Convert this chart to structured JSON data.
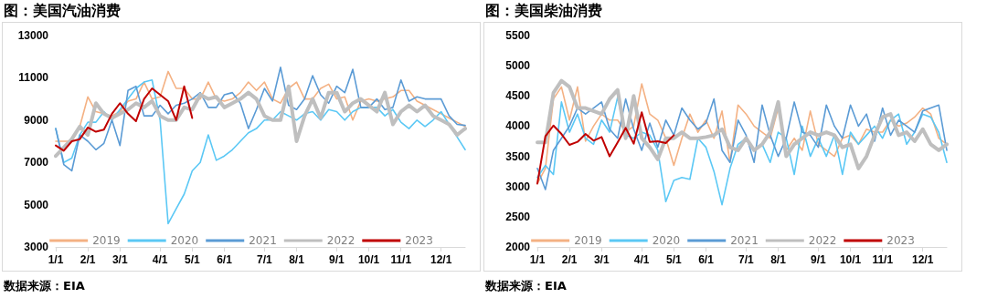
{
  "chart_data": [
    {
      "type": "line",
      "title": "图：美国汽油消费",
      "annotations": [
        "数据来源：EIA"
      ],
      "categories": [
        "1/1",
        null,
        null,
        null,
        "2/1",
        null,
        null,
        null,
        "3/1",
        null,
        null,
        null,
        null,
        "4/1",
        null,
        null,
        null,
        "5/1",
        null,
        null,
        null,
        "6/1",
        null,
        null,
        null,
        null,
        "7/1",
        null,
        null,
        null,
        "8/1",
        null,
        null,
        null,
        null,
        "9/1",
        null,
        null,
        null,
        "10/1",
        null,
        null,
        null,
        "11/1",
        null,
        null,
        null,
        null,
        "12/1",
        null,
        null,
        null
      ],
      "series": [
        {
          "name": "2019",
          "color": "#f4b183",
          "values": [
            8000,
            8000,
            8000,
            8700,
            10100,
            9400,
            9300,
            9200,
            9400,
            9900,
            10000,
            10800,
            10000,
            10100,
            11300,
            10500,
            10500,
            10000,
            10000,
            10800,
            10000,
            9900,
            10000,
            10300,
            10800,
            10400,
            10800,
            10000,
            9800,
            10500,
            10800,
            10000,
            10000,
            10500,
            10700,
            10000,
            10100,
            9000,
            9900,
            10000,
            9900,
            10000,
            10100,
            10400,
            10400,
            9900,
            9700,
            9500,
            9300,
            9100,
            8900,
            8700
          ]
        },
        {
          "name": "2020",
          "color": "#5bc8f5",
          "values": [
            8600,
            7000,
            7200,
            8300,
            8900,
            8900,
            9400,
            9000,
            9500,
            10000,
            10500,
            10800,
            10900,
            9000,
            4100,
            4800,
            5500,
            6600,
            7000,
            8300,
            7100,
            7300,
            7600,
            8000,
            8400,
            8600,
            9000,
            9000,
            9400,
            9200,
            9000,
            9300,
            9400,
            9000,
            9500,
            9400,
            9000,
            9400,
            9600,
            9600,
            9600,
            9200,
            9500,
            8900,
            8600,
            9000,
            8700,
            9000,
            9400,
            8800,
            8200,
            7600
          ]
        },
        {
          "name": "2021",
          "color": "#5b9bd5",
          "values": [
            8600,
            6900,
            6600,
            8300,
            8000,
            7600,
            7900,
            9000,
            7800,
            10400,
            10600,
            9200,
            9200,
            9700,
            9300,
            9700,
            9800,
            10000,
            10300,
            9600,
            9600,
            10200,
            10300,
            9800,
            8600,
            9500,
            10500,
            9900,
            11500,
            9700,
            9500,
            10000,
            11100,
            10200,
            9800,
            10600,
            10300,
            11400,
            9600,
            9600,
            10000,
            9500,
            9600,
            10900,
            9900,
            10100,
            10000,
            10000,
            10000,
            9200,
            8800,
            8750
          ]
        },
        {
          "name": "2022",
          "color": "#bfbfbf",
          "values": [
            7300,
            7700,
            8100,
            8700,
            8300,
            9800,
            9300,
            9100,
            9300,
            9500,
            9800,
            9600,
            9900,
            9200,
            9000,
            9000,
            9600,
            9500,
            10200,
            10000,
            10100,
            9600,
            9800,
            10000,
            10300,
            10000,
            9200,
            9000,
            9000,
            10600,
            8000,
            9200,
            10000,
            9100,
            10300,
            10300,
            9400,
            9800,
            10000,
            9700,
            9400,
            10300,
            8800,
            9400,
            9700,
            9400,
            9700,
            9200,
            9000,
            8800,
            8300,
            8600
          ]
        },
        {
          "name": "2023",
          "color": "#c00000",
          "values": [
            7800,
            7550,
            8000,
            8100,
            8650,
            8450,
            8550,
            9300,
            9800,
            9300,
            8950,
            10000,
            10500,
            10200,
            9900,
            9000,
            10600,
            9100,
            null,
            null,
            null,
            null,
            null,
            null,
            null,
            null,
            null,
            null,
            null,
            null,
            null,
            null,
            null,
            null,
            null,
            null,
            null,
            null,
            null,
            null,
            null,
            null,
            null,
            null,
            null,
            null,
            null,
            null,
            null,
            null,
            null,
            null
          ]
        }
      ],
      "ylim": [
        3000,
        13000
      ],
      "yticks": [
        3000,
        5000,
        7000,
        9000,
        11000,
        13000
      ],
      "grid": false,
      "legend": "bottom",
      "marker": "none",
      "line_style": "solid"
    },
    {
      "type": "line",
      "title": "图：美国柴油消费",
      "annotations": [
        "数据来源：EIA"
      ],
      "categories": [
        "1/1",
        null,
        null,
        null,
        "2/1",
        null,
        null,
        null,
        "3/1",
        null,
        null,
        null,
        null,
        "4/1",
        null,
        null,
        null,
        "5/1",
        null,
        null,
        null,
        "6/1",
        null,
        null,
        null,
        null,
        "7/1",
        null,
        null,
        null,
        "8/1",
        null,
        null,
        null,
        null,
        "9/1",
        null,
        null,
        null,
        "10/1",
        null,
        null,
        null,
        "11/1",
        null,
        null,
        null,
        null,
        "12/1",
        null,
        null,
        null
      ],
      "series": [
        {
          "name": "2019",
          "color": "#f4b183",
          "values": [
            3050,
            3300,
            4450,
            4650,
            4100,
            4650,
            3750,
            4000,
            4200,
            4100,
            4100,
            3900,
            4000,
            4700,
            4200,
            4100,
            3800,
            3350,
            3800,
            4200,
            3900,
            4100,
            3800,
            4250,
            3400,
            4350,
            4200,
            4000,
            3900,
            3800,
            4300,
            3600,
            3800,
            3600,
            4250,
            3700,
            3600,
            3500,
            3800,
            3850,
            3700,
            3950,
            3900,
            3900,
            4100,
            4000,
            4050,
            4150,
            4300,
            4200,
            3800,
            3700
          ]
        },
        {
          "name": "2020",
          "color": "#5bc8f5",
          "values": [
            3150,
            3350,
            3200,
            4400,
            3900,
            4200,
            3800,
            3700,
            4100,
            3900,
            4480,
            3850,
            3800,
            3900,
            3850,
            3600,
            2750,
            3100,
            3150,
            3120,
            3800,
            3650,
            3250,
            2700,
            3300,
            3700,
            3800,
            3600,
            3700,
            3400,
            3900,
            3800,
            3200,
            4000,
            3500,
            3800,
            3500,
            3850,
            3200,
            3900,
            3700,
            3850,
            4000,
            3800,
            4100,
            4200,
            3700,
            3900,
            4200,
            4150,
            3900,
            3400
          ]
        },
        {
          "name": "2021",
          "color": "#5b9bd5",
          "values": [
            3300,
            2950,
            3600,
            3800,
            4000,
            4300,
            4200,
            4300,
            4400,
            3950,
            3800,
            4450,
            3950,
            3600,
            4050,
            3650,
            4100,
            3850,
            4300,
            4100,
            3950,
            4050,
            4450,
            3600,
            3400,
            4100,
            3850,
            3400,
            4350,
            3850,
            3500,
            3800,
            4400,
            3900,
            3850,
            3650,
            4350,
            4000,
            3800,
            4350,
            4000,
            4200,
            3750,
            4300,
            3850,
            4100,
            4000,
            3900,
            4250,
            4300,
            4350,
            3600
          ]
        },
        {
          "name": "2022",
          "color": "#bfbfbf",
          "values": [
            3730,
            3730,
            4550,
            4750,
            4650,
            4300,
            4300,
            4250,
            4200,
            4450,
            4600,
            3800,
            4500,
            3800,
            3650,
            3450,
            3800,
            3800,
            3900,
            3800,
            3800,
            3820,
            3850,
            3950,
            3650,
            3600,
            3800,
            3600,
            3700,
            3900,
            4400,
            3500,
            3700,
            3800,
            3900,
            3850,
            3900,
            3850,
            3650,
            3700,
            3300,
            3500,
            3850,
            4150,
            4200,
            3850,
            3900,
            3750,
            3950,
            3700,
            3600,
            3700
          ]
        },
        {
          "name": "2023",
          "color": "#c00000",
          "values": [
            3050,
            3830,
            4010,
            3870,
            3690,
            3740,
            3870,
            3760,
            3820,
            3500,
            3730,
            3970,
            3710,
            4230,
            3740,
            3750,
            3720,
            3850,
            null,
            null,
            null,
            null,
            null,
            null,
            null,
            null,
            null,
            null,
            null,
            null,
            null,
            null,
            null,
            null,
            null,
            null,
            null,
            null,
            null,
            null,
            null,
            null,
            null,
            null,
            null,
            null,
            null,
            null,
            null,
            null,
            null,
            null
          ]
        }
      ],
      "ylim": [
        2000,
        5500
      ],
      "yticks": [
        2000,
        2500,
        3000,
        3500,
        4000,
        4500,
        5000,
        5500
      ],
      "grid": false,
      "legend": "bottom",
      "marker": "none",
      "line_style": "solid"
    }
  ]
}
